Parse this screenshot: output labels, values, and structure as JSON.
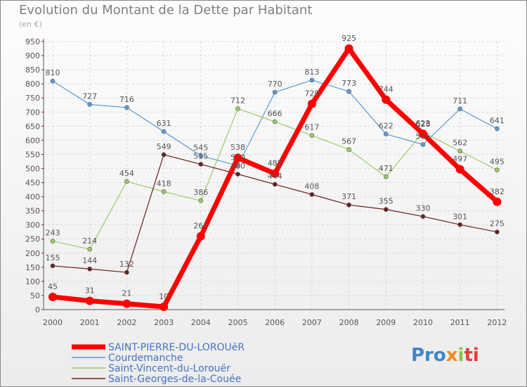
{
  "chart_data": {
    "type": "line",
    "title": "Evolution du Montant de la Dette par Habitant",
    "subtitle": "(en €)",
    "xlabel": "",
    "ylabel": "",
    "x": [
      "2000",
      "2001",
      "2002",
      "2003",
      "2004",
      "2005",
      "2006",
      "2007",
      "2008",
      "2009",
      "2010",
      "2011",
      "2012"
    ],
    "ylim": [
      0,
      950
    ],
    "yticks": [
      0,
      50,
      100,
      150,
      200,
      250,
      300,
      350,
      400,
      450,
      500,
      550,
      600,
      650,
      700,
      750,
      800,
      850,
      900,
      950
    ],
    "grid": true,
    "legend_position": "bottom-left",
    "series": [
      {
        "name": "SAINT-PIERRE-DU-LOROUëR",
        "color": "#ff0000",
        "values": [
          45,
          31,
          21,
          10,
          260,
          538,
          482,
          729,
          925,
          744,
          623,
          497,
          382
        ]
      },
      {
        "name": "Courdemanche",
        "color": "#5b9bd5",
        "values": [
          810,
          727,
          716,
          631,
          545,
          510,
          770,
          813,
          773,
          622,
          585,
          711,
          641
        ]
      },
      {
        "name": "Saint-Vincent-du-Lorouër",
        "color": "#99cc66",
        "values": [
          243,
          214,
          454,
          418,
          386,
          712,
          666,
          617,
          567,
          471,
          628,
          562,
          495
        ]
      },
      {
        "name": "Saint-Georges-de-la-Couée",
        "color": "#6b1f1f",
        "values": [
          155,
          144,
          132,
          549,
          515,
          480,
          444,
          408,
          371,
          355,
          330,
          301,
          275
        ]
      }
    ]
  },
  "logo": {
    "p1": "Pro",
    "p2": "x",
    "p3": "i",
    "p4": "ti"
  }
}
